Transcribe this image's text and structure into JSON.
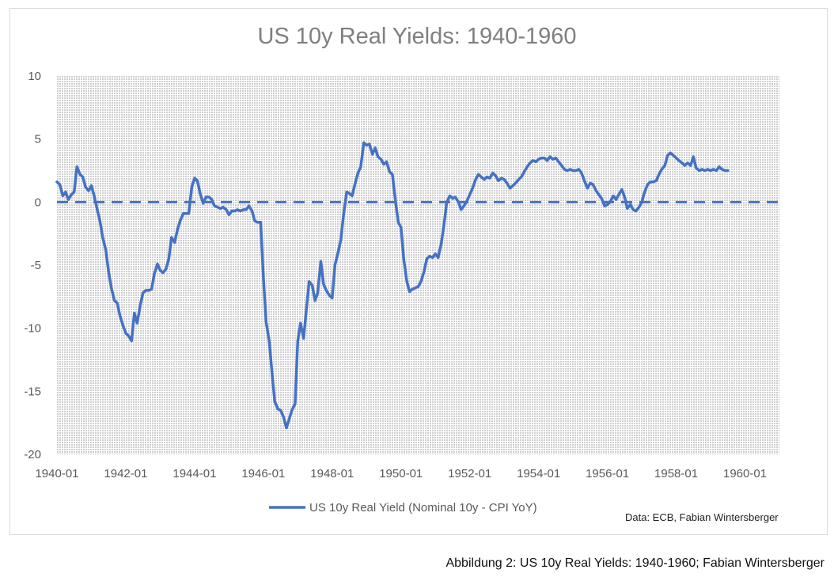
{
  "caption": "Abbildung 2: US 10y Real Yields: 1940-1960; Fabian Wintersberger",
  "source": "Data: ECB, Fabian Wintersberger",
  "colors": {
    "series": "#4472c4",
    "plot_bg": "#e5e5e5",
    "text": "#595959"
  },
  "chart_data": {
    "type": "line",
    "title": "US 10y Real Yields: 1940-1960",
    "xlabel": "",
    "ylabel": "",
    "ylim": [
      -20,
      10
    ],
    "yticks": [
      "10",
      "5",
      "0",
      "-5",
      "-10",
      "-15",
      "-20"
    ],
    "xlim": [
      1940.0,
      1961.0
    ],
    "xticks": [
      "1940-01",
      "1942-01",
      "1944-01",
      "1946-01",
      "1948-01",
      "1950-01",
      "1952-01",
      "1954-01",
      "1956-01",
      "1958-01",
      "1960-01"
    ],
    "grid": true,
    "legend": "bottom",
    "reference_line": {
      "y": 0,
      "style": "dashed"
    },
    "series": [
      {
        "name": "US 10y Real Yield (Nominal 10y - CPI YoY)",
        "points": [
          [
            1940.0,
            1.6
          ],
          [
            1940.08,
            1.4
          ],
          [
            1940.17,
            0.5
          ],
          [
            1940.25,
            0.8
          ],
          [
            1940.33,
            0.2
          ],
          [
            1940.42,
            0.6
          ],
          [
            1940.5,
            0.8
          ],
          [
            1940.58,
            2.8
          ],
          [
            1940.67,
            2.2
          ],
          [
            1940.75,
            2.0
          ],
          [
            1940.83,
            1.2
          ],
          [
            1940.92,
            0.9
          ],
          [
            1941.0,
            1.3
          ],
          [
            1941.08,
            0.5
          ],
          [
            1941.17,
            -0.6
          ],
          [
            1941.25,
            -1.5
          ],
          [
            1941.33,
            -2.8
          ],
          [
            1941.42,
            -3.8
          ],
          [
            1941.5,
            -5.5
          ],
          [
            1941.58,
            -6.8
          ],
          [
            1941.67,
            -7.8
          ],
          [
            1941.75,
            -8.0
          ],
          [
            1941.83,
            -9.0
          ],
          [
            1941.92,
            -9.8
          ],
          [
            1942.0,
            -10.4
          ],
          [
            1942.08,
            -10.6
          ],
          [
            1942.17,
            -11.0
          ],
          [
            1942.25,
            -8.8
          ],
          [
            1942.33,
            -9.6
          ],
          [
            1942.42,
            -8.2
          ],
          [
            1942.5,
            -7.2
          ],
          [
            1942.58,
            -7.0
          ],
          [
            1942.67,
            -7.0
          ],
          [
            1942.75,
            -6.9
          ],
          [
            1942.83,
            -5.7
          ],
          [
            1942.92,
            -4.9
          ],
          [
            1943.0,
            -5.4
          ],
          [
            1943.08,
            -5.6
          ],
          [
            1943.17,
            -5.3
          ],
          [
            1943.25,
            -4.5
          ],
          [
            1943.33,
            -2.8
          ],
          [
            1943.42,
            -3.2
          ],
          [
            1943.5,
            -2.2
          ],
          [
            1943.58,
            -1.5
          ],
          [
            1943.67,
            -0.9
          ],
          [
            1943.75,
            -0.9
          ],
          [
            1943.83,
            -0.9
          ],
          [
            1943.92,
            1.2
          ],
          [
            1944.0,
            1.9
          ],
          [
            1944.08,
            1.7
          ],
          [
            1944.17,
            0.6
          ],
          [
            1944.25,
            -0.1
          ],
          [
            1944.33,
            0.4
          ],
          [
            1944.42,
            0.4
          ],
          [
            1944.5,
            0.2
          ],
          [
            1944.58,
            -0.3
          ],
          [
            1944.67,
            -0.4
          ],
          [
            1944.75,
            -0.5
          ],
          [
            1944.83,
            -0.4
          ],
          [
            1944.92,
            -0.6
          ],
          [
            1945.0,
            -1.0
          ],
          [
            1945.08,
            -0.7
          ],
          [
            1945.17,
            -0.7
          ],
          [
            1945.25,
            -0.6
          ],
          [
            1945.33,
            -0.7
          ],
          [
            1945.42,
            -0.6
          ],
          [
            1945.5,
            -0.6
          ],
          [
            1945.58,
            -0.3
          ],
          [
            1945.67,
            -0.7
          ],
          [
            1945.75,
            -1.5
          ],
          [
            1945.83,
            -1.6
          ],
          [
            1945.92,
            -1.6
          ],
          [
            1946.0,
            -6.0
          ],
          [
            1946.08,
            -9.5
          ],
          [
            1946.17,
            -11.0
          ],
          [
            1946.25,
            -13.5
          ],
          [
            1946.33,
            -15.8
          ],
          [
            1946.42,
            -16.4
          ],
          [
            1946.5,
            -16.5
          ],
          [
            1946.58,
            -17.0
          ],
          [
            1946.67,
            -17.9
          ],
          [
            1946.75,
            -17.2
          ],
          [
            1946.83,
            -16.5
          ],
          [
            1946.92,
            -16.0
          ],
          [
            1947.0,
            -11.0
          ],
          [
            1947.08,
            -9.6
          ],
          [
            1947.17,
            -10.8
          ],
          [
            1947.25,
            -8.5
          ],
          [
            1947.33,
            -6.3
          ],
          [
            1947.42,
            -6.6
          ],
          [
            1947.5,
            -7.8
          ],
          [
            1947.58,
            -7.2
          ],
          [
            1947.67,
            -4.7
          ],
          [
            1947.75,
            -6.5
          ],
          [
            1947.83,
            -7.0
          ],
          [
            1947.92,
            -7.4
          ],
          [
            1948.0,
            -7.6
          ],
          [
            1948.08,
            -5.0
          ],
          [
            1948.17,
            -4.0
          ],
          [
            1948.25,
            -3.0
          ],
          [
            1948.33,
            -1.0
          ],
          [
            1948.42,
            0.8
          ],
          [
            1948.5,
            0.7
          ],
          [
            1948.58,
            0.5
          ],
          [
            1948.67,
            1.5
          ],
          [
            1948.75,
            2.3
          ],
          [
            1948.83,
            2.8
          ],
          [
            1948.92,
            4.7
          ],
          [
            1949.0,
            4.5
          ],
          [
            1949.08,
            4.6
          ],
          [
            1949.17,
            3.8
          ],
          [
            1949.25,
            4.3
          ],
          [
            1949.33,
            3.6
          ],
          [
            1949.42,
            3.4
          ],
          [
            1949.5,
            3.0
          ],
          [
            1949.58,
            3.2
          ],
          [
            1949.67,
            2.4
          ],
          [
            1949.75,
            2.2
          ],
          [
            1949.83,
            0.3
          ],
          [
            1949.92,
            -1.6
          ],
          [
            1950.0,
            -2.0
          ],
          [
            1950.08,
            -4.5
          ],
          [
            1950.17,
            -6.3
          ],
          [
            1950.25,
            -7.1
          ],
          [
            1950.33,
            -6.9
          ],
          [
            1950.42,
            -6.8
          ],
          [
            1950.5,
            -6.7
          ],
          [
            1950.58,
            -6.3
          ],
          [
            1950.67,
            -5.5
          ],
          [
            1950.75,
            -4.5
          ],
          [
            1950.83,
            -4.3
          ],
          [
            1950.92,
            -4.4
          ],
          [
            1951.0,
            -4.1
          ],
          [
            1951.08,
            -4.4
          ],
          [
            1951.17,
            -3.3
          ],
          [
            1951.25,
            -1.8
          ],
          [
            1951.33,
            0.0
          ],
          [
            1951.42,
            0.5
          ],
          [
            1951.5,
            0.3
          ],
          [
            1951.58,
            0.4
          ],
          [
            1951.67,
            0.0
          ],
          [
            1951.75,
            -0.6
          ],
          [
            1951.83,
            -0.3
          ],
          [
            1951.92,
            0.1
          ],
          [
            1952.0,
            0.6
          ],
          [
            1952.08,
            1.1
          ],
          [
            1952.17,
            1.8
          ],
          [
            1952.25,
            2.2
          ],
          [
            1952.33,
            2.0
          ],
          [
            1952.42,
            1.8
          ],
          [
            1952.5,
            2.0
          ],
          [
            1952.58,
            1.9
          ],
          [
            1952.67,
            2.3
          ],
          [
            1952.75,
            2.1
          ],
          [
            1952.83,
            1.7
          ],
          [
            1952.92,
            1.9
          ],
          [
            1953.0,
            1.8
          ],
          [
            1953.08,
            1.5
          ],
          [
            1953.17,
            1.1
          ],
          [
            1953.25,
            1.3
          ],
          [
            1953.33,
            1.5
          ],
          [
            1953.42,
            1.8
          ],
          [
            1953.5,
            2.0
          ],
          [
            1953.58,
            2.4
          ],
          [
            1953.67,
            2.8
          ],
          [
            1953.75,
            3.1
          ],
          [
            1953.83,
            3.3
          ],
          [
            1953.92,
            3.2
          ],
          [
            1954.0,
            3.4
          ],
          [
            1954.08,
            3.5
          ],
          [
            1954.17,
            3.5
          ],
          [
            1954.25,
            3.3
          ],
          [
            1954.33,
            3.6
          ],
          [
            1954.42,
            3.4
          ],
          [
            1954.5,
            3.5
          ],
          [
            1954.58,
            3.2
          ],
          [
            1954.67,
            2.9
          ],
          [
            1954.75,
            2.6
          ],
          [
            1954.83,
            2.5
          ],
          [
            1954.92,
            2.6
          ],
          [
            1955.0,
            2.5
          ],
          [
            1955.08,
            2.5
          ],
          [
            1955.17,
            2.6
          ],
          [
            1955.25,
            2.3
          ],
          [
            1955.33,
            1.7
          ],
          [
            1955.42,
            1.1
          ],
          [
            1955.5,
            1.5
          ],
          [
            1955.58,
            1.4
          ],
          [
            1955.67,
            0.9
          ],
          [
            1955.75,
            0.6
          ],
          [
            1955.83,
            0.3
          ],
          [
            1955.92,
            -0.3
          ],
          [
            1956.0,
            -0.2
          ],
          [
            1956.08,
            0.0
          ],
          [
            1956.17,
            0.5
          ],
          [
            1956.25,
            0.2
          ],
          [
            1956.33,
            0.6
          ],
          [
            1956.42,
            1.0
          ],
          [
            1956.5,
            0.4
          ],
          [
            1956.58,
            -0.5
          ],
          [
            1956.67,
            -0.2
          ],
          [
            1956.75,
            -0.6
          ],
          [
            1956.83,
            -0.7
          ],
          [
            1956.92,
            -0.4
          ],
          [
            1957.0,
            0.0
          ],
          [
            1957.08,
            0.8
          ],
          [
            1957.17,
            1.4
          ],
          [
            1957.25,
            1.6
          ],
          [
            1957.33,
            1.6
          ],
          [
            1957.42,
            1.7
          ],
          [
            1957.5,
            2.2
          ],
          [
            1957.58,
            2.6
          ],
          [
            1957.67,
            2.9
          ],
          [
            1957.75,
            3.7
          ],
          [
            1957.83,
            3.9
          ],
          [
            1957.92,
            3.7
          ],
          [
            1958.0,
            3.5
          ],
          [
            1958.08,
            3.3
          ],
          [
            1958.17,
            3.1
          ],
          [
            1958.25,
            2.9
          ],
          [
            1958.33,
            3.1
          ],
          [
            1958.42,
            2.9
          ],
          [
            1958.5,
            3.6
          ],
          [
            1958.58,
            2.7
          ],
          [
            1958.67,
            2.5
          ],
          [
            1958.75,
            2.6
          ],
          [
            1958.83,
            2.5
          ],
          [
            1958.92,
            2.6
          ],
          [
            1959.0,
            2.5
          ],
          [
            1959.08,
            2.6
          ],
          [
            1959.17,
            2.5
          ],
          [
            1959.25,
            2.8
          ],
          [
            1959.33,
            2.6
          ],
          [
            1959.42,
            2.5
          ],
          [
            1959.5,
            2.5
          ]
        ]
      }
    ]
  }
}
